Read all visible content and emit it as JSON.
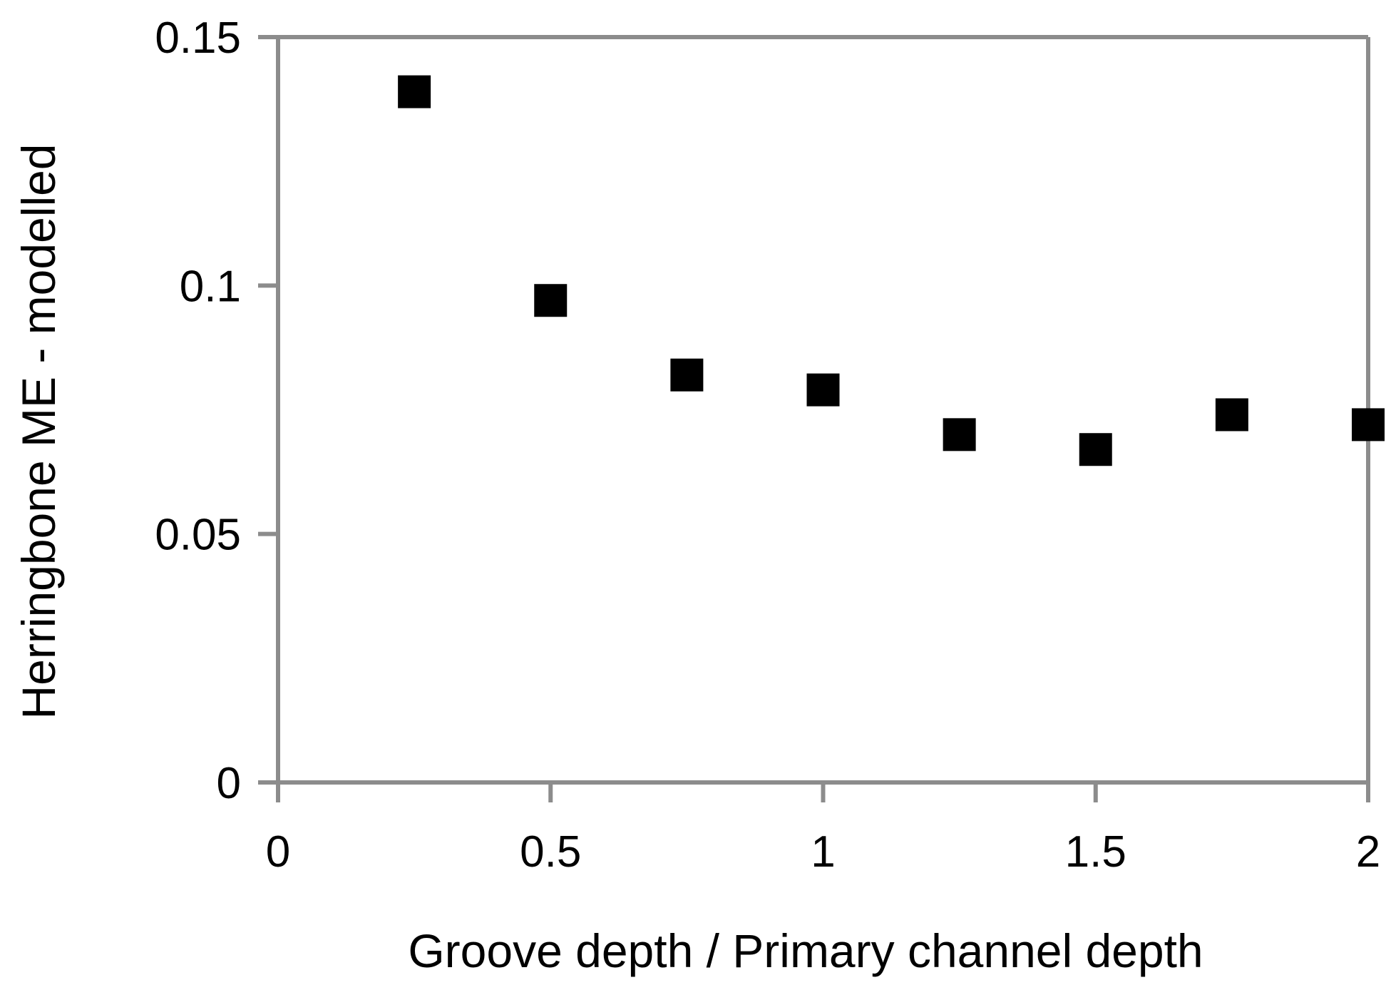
{
  "chart_data": {
    "type": "scatter",
    "title": "",
    "xlabel": "Groove depth / Primary channel depth",
    "ylabel": "Herringbone ME - modelled",
    "xlim": [
      0,
      2
    ],
    "ylim": [
      0,
      0.15
    ],
    "x_ticks": [
      "0",
      "0.5",
      "1",
      "1.5",
      "2"
    ],
    "y_ticks": [
      "0",
      "0.05",
      "0.1",
      "0.15"
    ],
    "grid": false,
    "legend": "none",
    "marker": "square",
    "marker_color": "#000000",
    "axis_color": "#8c8c8c",
    "series": [
      {
        "x": [
          0.25,
          0.5,
          0.75,
          1.0,
          1.25,
          1.5,
          1.75,
          2.0
        ],
        "y": [
          0.139,
          0.097,
          0.082,
          0.079,
          0.07,
          0.067,
          0.074,
          0.072
        ]
      }
    ]
  }
}
